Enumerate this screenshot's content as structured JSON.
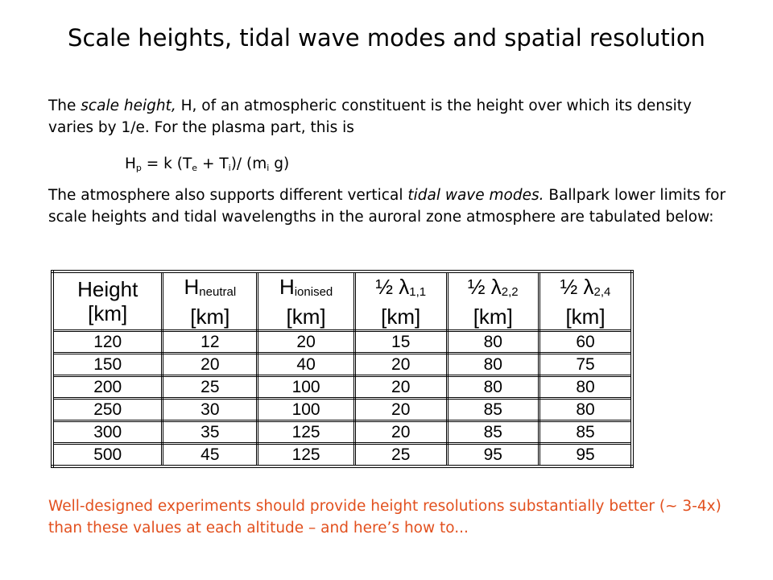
{
  "title": "Scale heights, tidal wave modes and spatial resolution",
  "intro": [
    "The ",
    "scale height,",
    " H, of an atmospheric constituent is the height over which its density varies by  1/e. For the plasma part, this is"
  ],
  "formula": [
    "H",
    "p",
    " = k (T",
    "e",
    " + T",
    "i",
    ")/ (m",
    "i",
    " g)"
  ],
  "modes": [
    "The atmosphere also supports different vertical ",
    "tidal wave modes.",
    " Ballpark lower limits for scale heights and tidal wavelengths in the auroral zone atmosphere are tabulated below:"
  ],
  "table": {
    "header": [
      {
        "main": "Height",
        "unit": "[km]"
      },
      {
        "main": "H",
        "sub": "neutral",
        "unit": "[km]"
      },
      {
        "main": "H",
        "sub": "ionised",
        "unit": "[km]"
      },
      {
        "main": "½  λ",
        "sub": "1,1",
        "unit": "[km]"
      },
      {
        "main": "½  λ",
        "sub": "2,2",
        "unit": "[km]"
      },
      {
        "main": "½  λ",
        "sub": "2,4",
        "unit": "[km]"
      }
    ],
    "rows": [
      [
        120,
        12,
        20,
        15,
        80,
        60
      ],
      [
        150,
        20,
        40,
        20,
        80,
        75
      ],
      [
        200,
        25,
        100,
        20,
        80,
        80
      ],
      [
        250,
        30,
        100,
        20,
        85,
        80
      ],
      [
        300,
        35,
        125,
        20,
        85,
        85
      ],
      [
        500,
        45,
        125,
        25,
        95,
        95
      ]
    ]
  },
  "conclusion": "Well-designed experiments should provide height resolutions substantially better (~ 3-4x) than these values at each altitude – and here’s how to..."
}
